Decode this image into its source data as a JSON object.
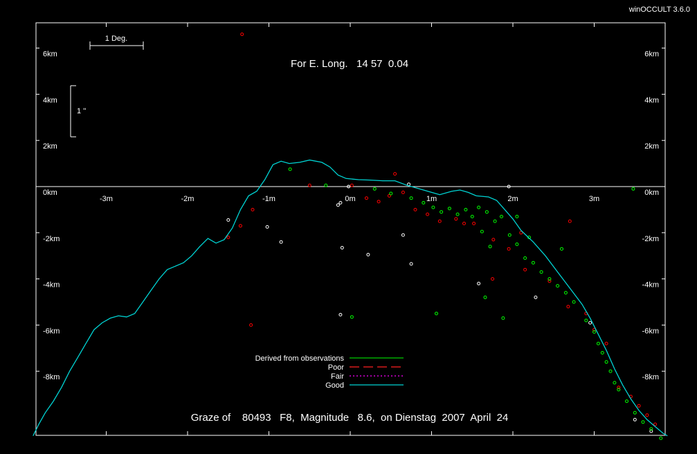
{
  "app": {
    "title": "winOCCULT 3.6.0"
  },
  "colors": {
    "background": "#000000",
    "frame": "#ffffff",
    "good": "#00d4d4",
    "poor": "#ff2020",
    "fair": "#ff00ff",
    "derived": "#00cc00",
    "obs_green": "#00ff00",
    "obs_red": "#ff0000",
    "obs_white": "#ffffff"
  },
  "chart_data": {
    "type": "line",
    "title": "For E. Long.   14 57  0.04",
    "subtitle": "Graze of    80493   F8,  Magnitude   8.6,  on Dienstag  2007  April  24",
    "x_unit": "minutes of time",
    "y_unit": "km",
    "xlim": [
      -3.9,
      3.9
    ],
    "ylim": [
      -10.8,
      7.1
    ],
    "x_ticks": [
      -3,
      -2,
      -1,
      0,
      1,
      2,
      3
    ],
    "x_tick_labels": [
      "-3m",
      "-2m",
      "-1m",
      "0m",
      "1m",
      "2m",
      "3m"
    ],
    "y_ticks": [
      6,
      4,
      2,
      0,
      -2,
      -4,
      -6,
      -8
    ],
    "y_tick_labels": [
      "6km",
      "4km",
      "2km",
      "0km",
      "-2km",
      "-4km",
      "-6km",
      "-8km"
    ],
    "scale_bars": {
      "degree_label": "1 Deg.",
      "arcsec_label": "1 ''"
    },
    "legend": [
      {
        "label": "Derived from observations",
        "color": "#00cc00",
        "style": "solid"
      },
      {
        "label": "Poor",
        "color": "#ff2020",
        "style": "dashed"
      },
      {
        "label": "Fair",
        "color": "#ff00ff",
        "style": "dotted"
      },
      {
        "label": "Good",
        "color": "#00d4d4",
        "style": "solid"
      }
    ],
    "series": [
      {
        "name": "Good",
        "points": [
          [
            -3.9,
            -10.8
          ],
          [
            -3.83,
            -10.3
          ],
          [
            -3.75,
            -9.8
          ],
          [
            -3.65,
            -9.3
          ],
          [
            -3.55,
            -8.7
          ],
          [
            -3.45,
            -8.0
          ],
          [
            -3.35,
            -7.4
          ],
          [
            -3.25,
            -6.8
          ],
          [
            -3.15,
            -6.2
          ],
          [
            -3.05,
            -5.9
          ],
          [
            -2.95,
            -5.7
          ],
          [
            -2.85,
            -5.6
          ],
          [
            -2.75,
            -5.65
          ],
          [
            -2.65,
            -5.5
          ],
          [
            -2.55,
            -5.0
          ],
          [
            -2.45,
            -4.5
          ],
          [
            -2.35,
            -4.0
          ],
          [
            -2.25,
            -3.6
          ],
          [
            -2.15,
            -3.45
          ],
          [
            -2.05,
            -3.3
          ],
          [
            -1.95,
            -3.0
          ],
          [
            -1.85,
            -2.6
          ],
          [
            -1.75,
            -2.25
          ],
          [
            -1.65,
            -2.45
          ],
          [
            -1.55,
            -2.3
          ],
          [
            -1.45,
            -1.8
          ],
          [
            -1.35,
            -1.0
          ],
          [
            -1.25,
            -0.4
          ],
          [
            -1.15,
            -0.2
          ],
          [
            -1.05,
            0.3
          ],
          [
            -0.95,
            0.95
          ],
          [
            -0.85,
            1.1
          ],
          [
            -0.75,
            1.0
          ],
          [
            -0.62,
            1.05
          ],
          [
            -0.5,
            1.15
          ],
          [
            -0.35,
            1.05
          ],
          [
            -0.25,
            0.85
          ],
          [
            -0.15,
            0.5
          ],
          [
            -0.05,
            0.35
          ],
          [
            0.1,
            0.3
          ],
          [
            0.25,
            0.28
          ],
          [
            0.4,
            0.25
          ],
          [
            0.55,
            0.25
          ],
          [
            0.7,
            0.05
          ],
          [
            0.85,
            -0.1
          ],
          [
            1.0,
            -0.25
          ],
          [
            1.1,
            -0.35
          ],
          [
            1.25,
            -0.2
          ],
          [
            1.35,
            -0.15
          ],
          [
            1.45,
            -0.25
          ],
          [
            1.55,
            -0.4
          ],
          [
            1.7,
            -0.45
          ],
          [
            1.8,
            -0.6
          ],
          [
            1.9,
            -1.0
          ],
          [
            2.0,
            -1.4
          ],
          [
            2.1,
            -1.9
          ],
          [
            2.25,
            -2.4
          ],
          [
            2.4,
            -3.0
          ],
          [
            2.55,
            -3.7
          ],
          [
            2.7,
            -4.4
          ],
          [
            2.85,
            -5.1
          ],
          [
            2.95,
            -5.7
          ],
          [
            3.05,
            -6.4
          ],
          [
            3.15,
            -7.1
          ],
          [
            3.25,
            -7.9
          ],
          [
            3.35,
            -8.6
          ],
          [
            3.45,
            -9.2
          ],
          [
            3.55,
            -9.7
          ],
          [
            3.65,
            -10.1
          ],
          [
            3.75,
            -10.4
          ],
          [
            3.85,
            -10.7
          ],
          [
            3.9,
            -10.8
          ]
        ]
      }
    ],
    "observations_green": [
      [
        -0.74,
        0.75
      ],
      [
        -0.3,
        0.05
      ],
      [
        0.3,
        -0.1
      ],
      [
        0.5,
        -0.3
      ],
      [
        0.75,
        -0.5
      ],
      [
        0.9,
        -0.7
      ],
      [
        1.02,
        -0.9
      ],
      [
        1.12,
        -1.1
      ],
      [
        1.22,
        -0.95
      ],
      [
        1.32,
        -1.2
      ],
      [
        1.42,
        -1.0
      ],
      [
        1.5,
        -1.3
      ],
      [
        1.58,
        -0.9
      ],
      [
        1.68,
        -1.1
      ],
      [
        1.78,
        -1.5
      ],
      [
        1.86,
        -1.3
      ],
      [
        1.62,
        -1.95
      ],
      [
        1.72,
        -2.6
      ],
      [
        1.96,
        -2.1
      ],
      [
        2.05,
        -2.5
      ],
      [
        2.15,
        -3.1
      ],
      [
        2.25,
        -3.3
      ],
      [
        2.35,
        -3.7
      ],
      [
        2.45,
        -4.0
      ],
      [
        2.55,
        -4.3
      ],
      [
        2.65,
        -4.6
      ],
      [
        2.75,
        -5.0
      ],
      [
        2.9,
        -5.8
      ],
      [
        3.0,
        -6.3
      ],
      [
        3.05,
        -6.8
      ],
      [
        3.1,
        -7.2
      ],
      [
        3.15,
        -7.6
      ],
      [
        3.2,
        -8.0
      ],
      [
        3.25,
        -8.5
      ],
      [
        3.3,
        -8.8
      ],
      [
        3.4,
        -9.3
      ],
      [
        3.5,
        -9.8
      ],
      [
        3.6,
        -10.2
      ],
      [
        3.7,
        -10.5
      ],
      [
        3.82,
        -10.9
      ],
      [
        3.48,
        -0.1
      ],
      [
        2.6,
        -2.7
      ],
      [
        0.02,
        -5.65
      ],
      [
        1.06,
        -5.5
      ],
      [
        1.88,
        -5.7
      ],
      [
        1.66,
        -4.8
      ],
      [
        2.05,
        -1.3
      ],
      [
        2.2,
        -2.2
      ]
    ],
    "observations_red": [
      [
        -1.2,
        -1.0
      ],
      [
        -1.35,
        -1.7
      ],
      [
        -1.5,
        -2.2
      ],
      [
        -1.22,
        -6.0
      ],
      [
        0.55,
        0.55
      ],
      [
        0.65,
        -0.25
      ],
      [
        0.2,
        -0.5
      ],
      [
        0.35,
        -0.65
      ],
      [
        0.48,
        -0.4
      ],
      [
        0.8,
        -1.0
      ],
      [
        0.95,
        -1.2
      ],
      [
        1.1,
        -1.5
      ],
      [
        1.3,
        -1.4
      ],
      [
        1.52,
        -1.6
      ],
      [
        1.76,
        -2.3
      ],
      [
        1.95,
        -2.7
      ],
      [
        2.15,
        -3.6
      ],
      [
        2.45,
        -4.1
      ],
      [
        2.68,
        -5.2
      ],
      [
        2.9,
        -5.5
      ],
      [
        3.0,
        -6.2
      ],
      [
        3.15,
        -6.8
      ],
      [
        3.3,
        -8.7
      ],
      [
        3.45,
        -9.1
      ],
      [
        3.55,
        -9.5
      ],
      [
        3.65,
        -9.9
      ],
      [
        3.75,
        -10.3
      ],
      [
        2.7,
        -1.5
      ],
      [
        1.4,
        -1.6
      ],
      [
        -1.33,
        6.6
      ],
      [
        0.02,
        0.05
      ],
      [
        -0.5,
        0.05
      ],
      [
        2.1,
        -2.0
      ],
      [
        1.75,
        -4.0
      ]
    ],
    "observations_white": [
      [
        -1.5,
        -1.45
      ],
      [
        -1.02,
        -1.75
      ],
      [
        -0.85,
        -2.4
      ],
      [
        -0.12,
        -0.7
      ],
      [
        -0.1,
        -2.65
      ],
      [
        0.22,
        -2.95
      ],
      [
        0.65,
        -2.1
      ],
      [
        0.75,
        -3.35
      ],
      [
        -0.12,
        -5.55
      ],
      [
        1.58,
        -4.2
      ],
      [
        2.28,
        -4.8
      ],
      [
        2.95,
        -5.9
      ],
      [
        0.72,
        0.1
      ],
      [
        1.95,
        0.0
      ],
      [
        -0.02,
        0.0
      ],
      [
        -0.15,
        -0.8
      ],
      [
        3.5,
        -10.1
      ],
      [
        3.7,
        -10.6
      ]
    ]
  }
}
